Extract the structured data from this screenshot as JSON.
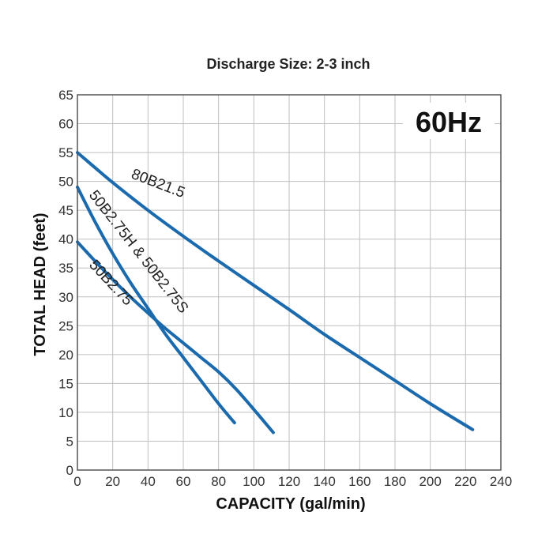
{
  "chart_data": {
    "type": "line",
    "subtitle": "Discharge Size: 2-3 inch",
    "frequency_label": "60Hz",
    "xlabel": "CAPACITY (gal/min)",
    "ylabel": "TOTAL HEAD (feet)",
    "xlim": [
      0,
      240
    ],
    "ylim": [
      0,
      65
    ],
    "x_ticks": [
      0,
      20,
      40,
      60,
      80,
      100,
      120,
      140,
      160,
      180,
      200,
      220,
      240
    ],
    "y_ticks": [
      0,
      5,
      10,
      15,
      20,
      25,
      30,
      35,
      40,
      45,
      50,
      55,
      60,
      65
    ],
    "x_tick_labels": [
      "0",
      "20",
      "40",
      "60",
      "80",
      "100",
      "120",
      "140",
      "160",
      "180",
      "200",
      "220",
      "240"
    ],
    "y_tick_labels": [
      "0",
      "5",
      "10",
      "15",
      "20",
      "25",
      "30",
      "35",
      "40",
      "45",
      "50",
      "55",
      "60",
      "65"
    ],
    "grid": true,
    "line_color": "#1a6aad",
    "series": [
      {
        "name": "80B21.5",
        "x": [
          0,
          20,
          40,
          60,
          80,
          100,
          120,
          140,
          160,
          180,
          200,
          224
        ],
        "y": [
          55,
          49.8,
          45,
          40.5,
          36.2,
          32,
          27.8,
          23.5,
          19.5,
          15.5,
          11.5,
          7
        ]
      },
      {
        "name": "50B2.75H & 50B2.75S",
        "x": [
          0,
          10,
          20,
          30,
          40,
          50,
          60,
          70,
          80,
          89
        ],
        "y": [
          49,
          43,
          37.5,
          32.5,
          28,
          23.5,
          19.5,
          15.5,
          11.5,
          8.2
        ]
      },
      {
        "name": "50B2.75",
        "x": [
          0,
          10,
          20,
          30,
          40,
          50,
          60,
          70,
          80,
          90,
          100,
          111
        ],
        "y": [
          39.5,
          36.2,
          33,
          30,
          27.2,
          24.5,
          22,
          19.5,
          17,
          14,
          10.5,
          6.5
        ]
      }
    ]
  }
}
